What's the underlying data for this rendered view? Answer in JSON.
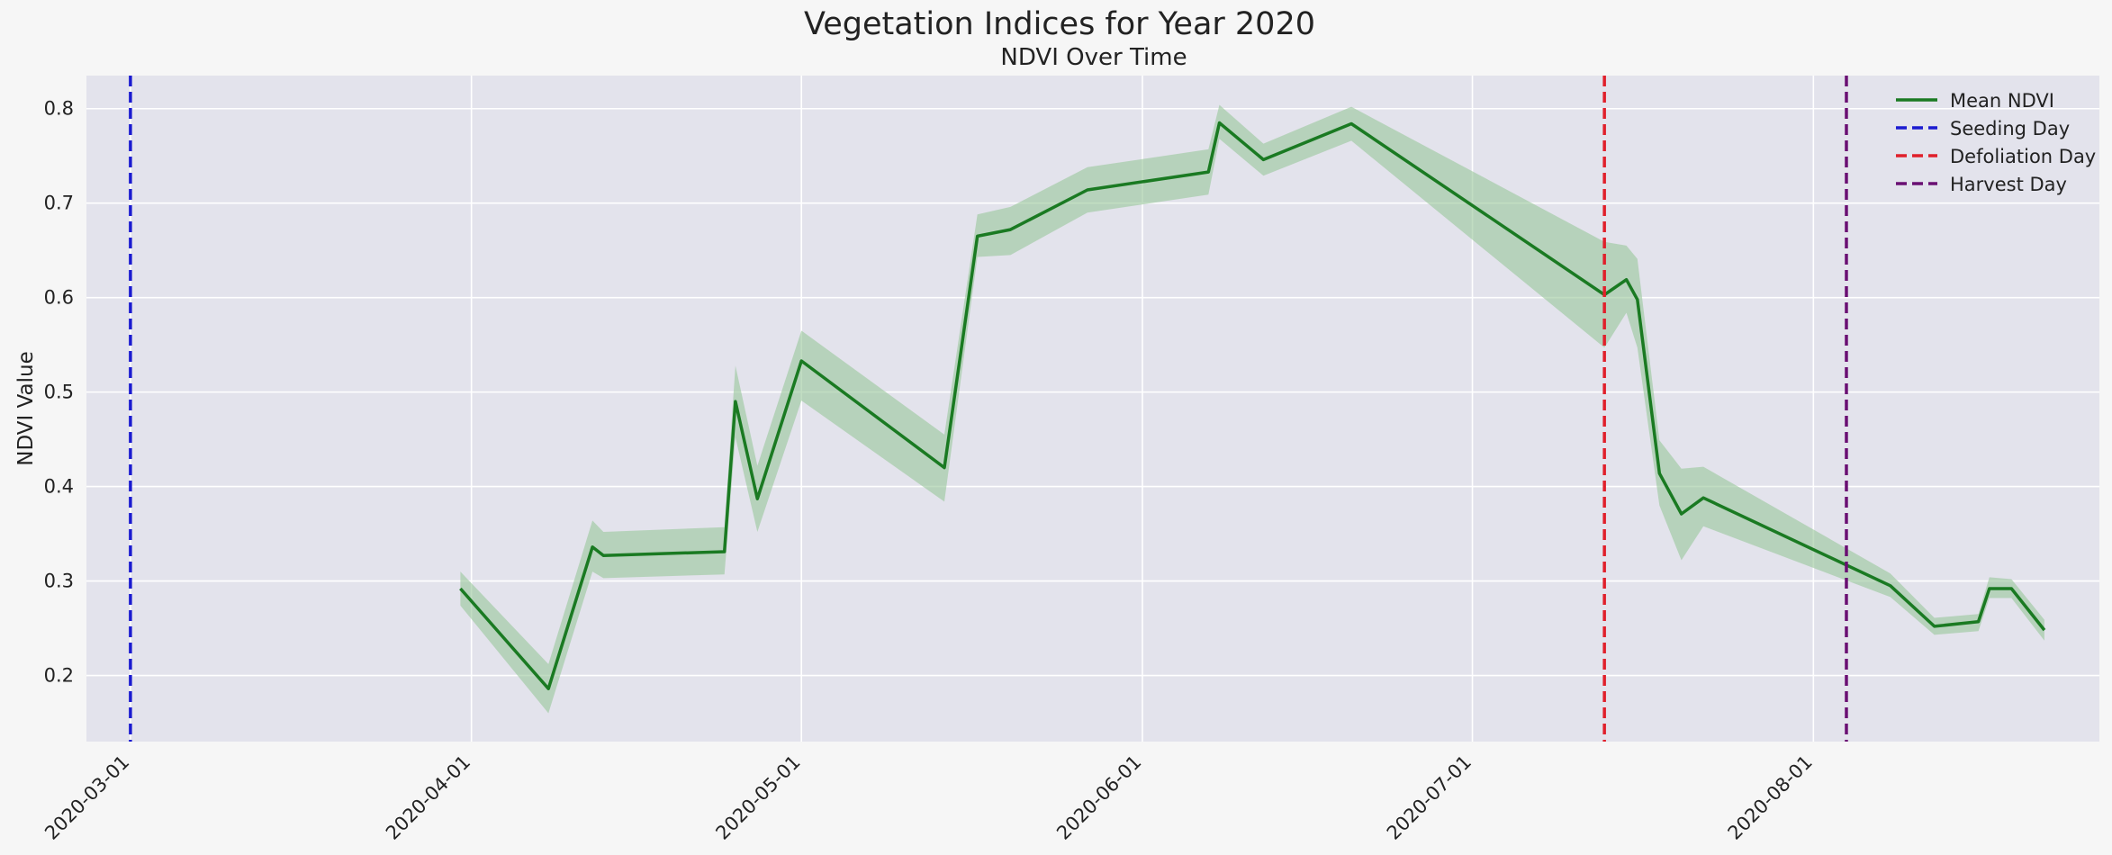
{
  "colors": {
    "background": "#f6f6f6",
    "plot_area": "#e3e3ec",
    "grid": "#ffffff",
    "mean_line": "#1a7a22",
    "band": "#9bc89c",
    "seeding": "#1b1bd0",
    "defoliation": "#e0202b",
    "harvest": "#6a0f73"
  },
  "chart_data": {
    "type": "line",
    "title": "Vegetation Indices for Year 2020",
    "subtitle": "NDVI Over Time",
    "xlabel": "",
    "ylabel": "NDVI Value",
    "x_axis": "date",
    "xlim": [
      "2020-02-26",
      "2020-08-27"
    ],
    "ylim": [
      0.13,
      0.835
    ],
    "x_ticks": [
      "2020-03-01",
      "2020-04-01",
      "2020-05-01",
      "2020-06-01",
      "2020-07-01",
      "2020-08-01"
    ],
    "y_ticks": [
      "0.2",
      "0.3",
      "0.4",
      "0.5",
      "0.6",
      "0.7",
      "0.8"
    ],
    "grid": true,
    "legend_position": "top-right",
    "series": [
      {
        "name": "Mean NDVI",
        "x": [
          "2020-03-31",
          "2020-04-08",
          "2020-04-12",
          "2020-04-13",
          "2020-04-24",
          "2020-04-25",
          "2020-04-27",
          "2020-05-01",
          "2020-05-14",
          "2020-05-17",
          "2020-05-20",
          "2020-05-27",
          "2020-06-07",
          "2020-06-08",
          "2020-06-12",
          "2020-06-20",
          "2020-07-13",
          "2020-07-15",
          "2020-07-16",
          "2020-07-18",
          "2020-07-20",
          "2020-07-22",
          "2020-08-08",
          "2020-08-12",
          "2020-08-16",
          "2020-08-17",
          "2020-08-19",
          "2020-08-22"
        ],
        "y": [
          0.292,
          0.186,
          0.336,
          0.327,
          0.331,
          0.49,
          0.387,
          0.533,
          0.42,
          0.665,
          0.672,
          0.714,
          0.733,
          0.785,
          0.746,
          0.784,
          0.603,
          0.619,
          0.598,
          0.414,
          0.371,
          0.388,
          0.295,
          0.252,
          0.257,
          0.292,
          0.292,
          0.248
        ],
        "lower": [
          0.274,
          0.16,
          0.31,
          0.303,
          0.307,
          0.452,
          0.352,
          0.491,
          0.384,
          0.643,
          0.645,
          0.69,
          0.709,
          0.768,
          0.729,
          0.766,
          0.547,
          0.584,
          0.547,
          0.38,
          0.322,
          0.358,
          0.283,
          0.243,
          0.247,
          0.282,
          0.282,
          0.237
        ],
        "upper": [
          0.31,
          0.212,
          0.364,
          0.352,
          0.357,
          0.528,
          0.422,
          0.565,
          0.455,
          0.688,
          0.696,
          0.738,
          0.757,
          0.804,
          0.763,
          0.802,
          0.659,
          0.655,
          0.641,
          0.449,
          0.419,
          0.421,
          0.308,
          0.261,
          0.265,
          0.304,
          0.302,
          0.259
        ]
      }
    ],
    "vlines": [
      {
        "name": "Seeding Day",
        "x": "2020-03-01",
        "color": "#1b1bd0"
      },
      {
        "name": "Defoliation Day",
        "x": "2020-07-13",
        "color": "#e0202b"
      },
      {
        "name": "Harvest Day",
        "x": "2020-08-04",
        "color": "#6a0f73"
      }
    ]
  }
}
